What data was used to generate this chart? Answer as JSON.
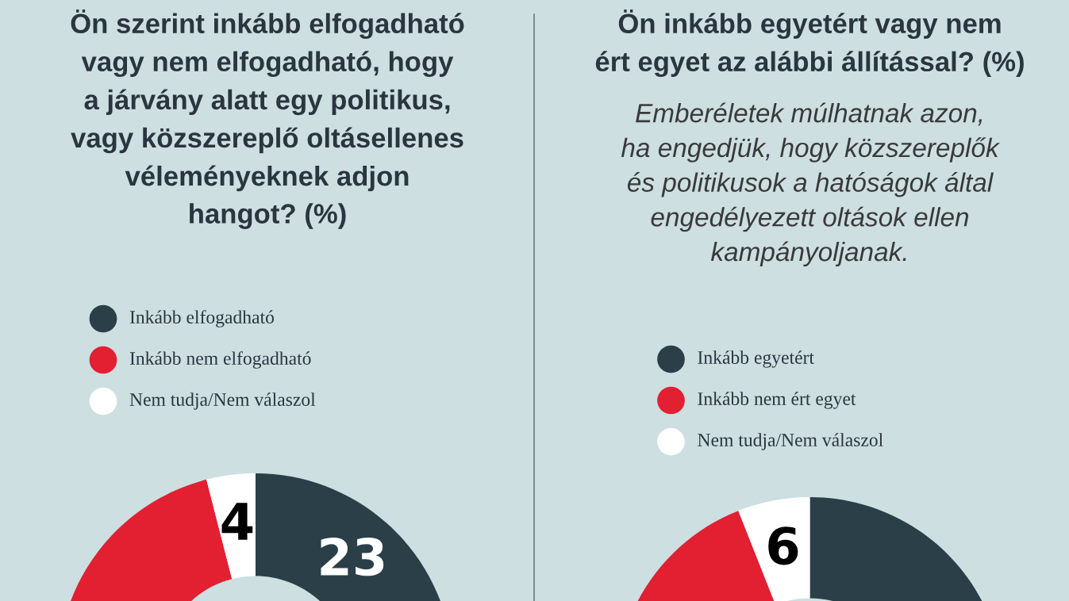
{
  "chart_data": [
    {
      "type": "donut",
      "title": "Ön szerint inkább elfogadható\nvagy nem elfogadható, hogy\na járvány alatt egy politikus,\nvagy közszereplő oltásellenes\nvéleményeknek adjon\nhangot? (%)",
      "categories": [
        "Inkább elfogadható",
        "Inkább nem elfogadható",
        "Nem tudja/Nem válaszol"
      ],
      "values": [
        23,
        73,
        4
      ],
      "colors": [
        "#2b3f49",
        "#e31f32",
        "#ffffff"
      ],
      "value_labels": [
        "23",
        null,
        "4"
      ],
      "legend": "top"
    },
    {
      "type": "donut",
      "title": "Ön inkább egyetért vagy nem\nért egyet az alábbi állítással? (%)",
      "subtitle": "Emberéletek múlhatnak azon,\nha engedjük, hogy közszereplők\nés politikusok a hatóságok által\nengedélyezett oltások ellen\nkampányoljanak.",
      "categories": [
        "Inkább egyetért",
        "Inkább nem ért egyet",
        "Nem tudja/Nem válaszol"
      ],
      "values": [
        70,
        24,
        6
      ],
      "colors": [
        "#2b3f49",
        "#e31f32",
        "#ffffff"
      ],
      "value_labels": [
        null,
        null,
        "6"
      ],
      "legend": "top"
    }
  ]
}
